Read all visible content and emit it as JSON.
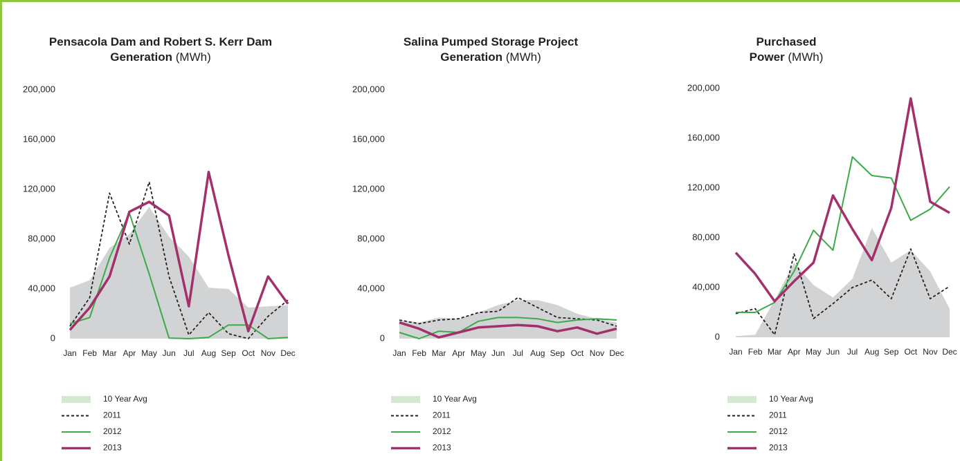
{
  "chart_data": [
    {
      "type": "line",
      "title": "Pensacola Dam and Robert S. Kerr Dam Generation",
      "unit": "(MWh)",
      "categories": [
        "Jan",
        "Feb",
        "Mar",
        "Apr",
        "May",
        "Jun",
        "Jul",
        "Aug",
        "Sep",
        "Oct",
        "Nov",
        "Dec"
      ],
      "ylim": [
        0,
        200000
      ],
      "yticks": [
        0,
        {
          "value": 40000,
          "label": "40,000"
        },
        {
          "value": 80000,
          "label": "80,000"
        },
        {
          "value": 120000,
          "label": "120,000"
        },
        {
          "value": 160000,
          "label": "160,000"
        },
        {
          "value": 200000,
          "label": "200,000"
        }
      ],
      "series": [
        {
          "name": "10 Year Avg",
          "style": "area",
          "color": "#d1d3d4",
          "legend_color": "#d5e8d1",
          "values": [
            41000,
            47000,
            73000,
            84000,
            106000,
            82000,
            66000,
            41000,
            40000,
            25000,
            26000,
            27000
          ]
        },
        {
          "name": "2011",
          "style": "dashed",
          "color": "#231f20",
          "values": [
            10000,
            33000,
            117000,
            76000,
            126000,
            50000,
            3000,
            21000,
            4000,
            0,
            18000,
            31000
          ]
        },
        {
          "name": "2012",
          "style": "thin",
          "color": "#3aaa4a",
          "values": [
            12000,
            17000,
            65000,
            101000,
            52000,
            500,
            0,
            1000,
            11000,
            11000,
            0,
            1000
          ]
        },
        {
          "name": "2013",
          "style": "thick",
          "color": "#a3306b",
          "values": [
            7000,
            25000,
            50000,
            102000,
            110000,
            99000,
            26000,
            134000,
            67000,
            6000,
            50000,
            28000
          ]
        }
      ]
    },
    {
      "type": "line",
      "title": "Salina Pumped Storage Project Generation",
      "unit": "(MWh)",
      "categories": [
        "Jan",
        "Feb",
        "Mar",
        "Apr",
        "May",
        "Jun",
        "Jul",
        "Aug",
        "Sep",
        "Oct",
        "Nov",
        "Dec"
      ],
      "ylim": [
        0,
        200000
      ],
      "yticks": [
        0,
        {
          "value": 40000,
          "label": "40,000"
        },
        {
          "value": 80000,
          "label": "80,000"
        },
        {
          "value": 120000,
          "label": "120,000"
        },
        {
          "value": 160000,
          "label": "160,000"
        },
        {
          "value": 200000,
          "label": "200,000"
        }
      ],
      "series": [
        {
          "name": "10 Year Avg",
          "style": "area",
          "color": "#d1d3d4",
          "legend_color": "#d5e8d1",
          "values": [
            15000,
            13000,
            17000,
            16000,
            21000,
            27000,
            31000,
            31000,
            27000,
            20000,
            16000,
            13000
          ]
        },
        {
          "name": "2011",
          "style": "dashed",
          "color": "#231f20",
          "values": [
            15000,
            12000,
            15000,
            16000,
            21000,
            22000,
            33000,
            25000,
            17000,
            16000,
            15000,
            10000
          ]
        },
        {
          "name": "2012",
          "style": "thin",
          "color": "#3aaa4a",
          "values": [
            5000,
            0,
            6000,
            5000,
            14000,
            17000,
            17000,
            16000,
            13000,
            15000,
            16000,
            15000
          ]
        },
        {
          "name": "2013",
          "style": "thick",
          "color": "#a3306b",
          "values": [
            13000,
            8000,
            1000,
            5000,
            9000,
            10000,
            11000,
            10000,
            6000,
            9000,
            4000,
            8000
          ]
        }
      ]
    },
    {
      "type": "line",
      "title": "Purchased Power",
      "unit": "(MWh)",
      "categories": [
        "Jan",
        "Feb",
        "Mar",
        "Apr",
        "May",
        "Jun",
        "Jul",
        "Aug",
        "Sep",
        "Oct",
        "Nov",
        "Dec"
      ],
      "ylim": [
        0,
        200000
      ],
      "yticks": [
        0,
        {
          "value": 40000,
          "label": "40,000"
        },
        {
          "value": 80000,
          "label": "80,000"
        },
        {
          "value": 120000,
          "label": "120,000"
        },
        {
          "value": 160000,
          "label": "160,000"
        },
        {
          "value": 200000,
          "label": "200,000"
        }
      ],
      "series": [
        {
          "name": "10 Year Avg",
          "style": "area",
          "color": "#d1d3d4",
          "legend_color": "#d5e8d1",
          "values": [
            1000,
            2000,
            30000,
            60000,
            42000,
            32000,
            47000,
            88000,
            60000,
            70000,
            53000,
            23000
          ]
        },
        {
          "name": "2011",
          "style": "dashed",
          "color": "#231f20",
          "values": [
            19000,
            23000,
            2000,
            67000,
            15000,
            27000,
            40000,
            46000,
            31000,
            71000,
            31000,
            41000
          ]
        },
        {
          "name": "2012",
          "style": "thin",
          "color": "#3aaa4a",
          "values": [
            20000,
            20000,
            28000,
            53000,
            86000,
            70000,
            145000,
            130000,
            128000,
            94000,
            103000,
            121000
          ]
        },
        {
          "name": "2013",
          "style": "thick",
          "color": "#a3306b",
          "values": [
            68000,
            51000,
            29000,
            45000,
            60000,
            114000,
            87000,
            62000,
            104000,
            192000,
            109000,
            100000
          ]
        }
      ]
    }
  ]
}
